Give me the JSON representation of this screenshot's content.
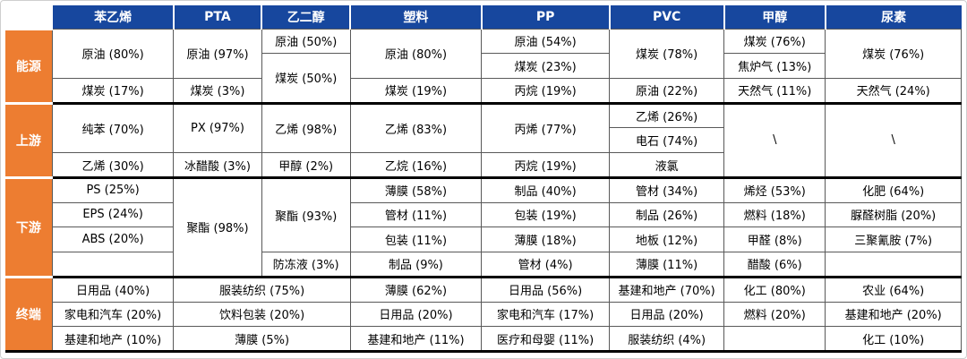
{
  "colors": {
    "header_bg": "#17479E",
    "header_text": "#FFFFFF",
    "label_bg": "#ED7D31",
    "label_text": "#FFFFFF",
    "body_text": "#000000",
    "thin_border": "#595959",
    "thick_border": "#000000"
  },
  "chart_data": {
    "type": "table",
    "corner_label": "",
    "col_widths_pct": [
      4.9,
      12.7,
      9.2,
      9.3,
      13.7,
      13.4,
      12.0,
      10.6,
      14.2
    ],
    "columns": [
      {
        "key": "styrene",
        "label": "苯乙烯"
      },
      {
        "key": "pta",
        "label": "PTA"
      },
      {
        "key": "meg",
        "label": "乙二醇"
      },
      {
        "key": "plastics",
        "label": "塑料"
      },
      {
        "key": "pp",
        "label": "PP"
      },
      {
        "key": "pvc",
        "label": "PVC"
      },
      {
        "key": "methanol",
        "label": "甲醇"
      },
      {
        "key": "urea",
        "label": "尿素"
      }
    ],
    "sections": [
      {
        "key": "energy",
        "label": "能源",
        "rows": 3,
        "columns": [
          {
            "cells": [
              {
                "t": "原油 (80%)",
                "rs": 2
              },
              {
                "t": "煤炭 (17%)"
              }
            ]
          },
          {
            "cells": [
              {
                "t": "原油 (97%)",
                "rs": 2
              },
              {
                "t": "煤炭 (3%)"
              }
            ]
          },
          {
            "cells": [
              {
                "t": "原油 (50%)"
              },
              {
                "t": "煤炭 (50%)",
                "rs": 2
              }
            ]
          },
          {
            "cells": [
              {
                "t": "原油 (80%)",
                "rs": 2
              },
              {
                "t": "煤炭 (19%)"
              }
            ]
          },
          {
            "cells": [
              {
                "t": "原油 (54%)"
              },
              {
                "t": "煤炭 (23%)"
              },
              {
                "t": "丙烷 (19%)"
              }
            ]
          },
          {
            "cells": [
              {
                "t": "煤炭 (78%)",
                "rs": 2
              },
              {
                "t": "原油 (22%)"
              }
            ]
          },
          {
            "cells": [
              {
                "t": "煤炭 (76%)"
              },
              {
                "t": "焦炉气 (13%)"
              },
              {
                "t": "天然气 (11%)"
              }
            ]
          },
          {
            "cells": [
              {
                "t": "煤炭 (76%)",
                "rs": 2
              },
              {
                "t": "天然气 (24%)"
              }
            ]
          }
        ]
      },
      {
        "key": "upstream",
        "label": "上游",
        "rows": 3,
        "columns": [
          {
            "cells": [
              {
                "t": "纯苯 (70%)",
                "rs": 2
              },
              {
                "t": "乙烯 (30%)"
              }
            ]
          },
          {
            "cells": [
              {
                "t": "PX (97%)",
                "rs": 2
              },
              {
                "t": "冰醋酸 (3%)"
              }
            ]
          },
          {
            "cells": [
              {
                "t": "乙烯 (98%)",
                "rs": 2
              },
              {
                "t": "甲醇 (2%)"
              }
            ]
          },
          {
            "cells": [
              {
                "t": "乙烯 (83%)",
                "rs": 2
              },
              {
                "t": "乙烷 (16%)"
              }
            ]
          },
          {
            "cells": [
              {
                "t": "丙烯 (77%)",
                "rs": 2
              },
              {
                "t": "丙烷 (19%)"
              }
            ]
          },
          {
            "cells": [
              {
                "t": "乙烯 (26%)"
              },
              {
                "t": "电石 (74%)"
              },
              {
                "t": "液氯"
              }
            ]
          },
          {
            "cells": [
              {
                "t": "\\",
                "rs": 3
              }
            ]
          },
          {
            "cells": [
              {
                "t": "\\",
                "rs": 3
              }
            ]
          }
        ]
      },
      {
        "key": "downstream",
        "label": "下游",
        "rows": 4,
        "columns": [
          {
            "cells": [
              {
                "t": "PS (25%)"
              },
              {
                "t": "EPS (24%)"
              },
              {
                "t": "ABS (20%)"
              },
              {
                "t": ""
              }
            ]
          },
          {
            "cells": [
              {
                "t": "聚酯 (98%)",
                "rs": 4
              }
            ]
          },
          {
            "cells": [
              {
                "t": "聚酯 (93%)",
                "rs": 3
              },
              {
                "t": "防冻液 (3%)"
              }
            ]
          },
          {
            "cells": [
              {
                "t": "薄膜 (58%)"
              },
              {
                "t": "管材 (11%)"
              },
              {
                "t": "包装 (11%)"
              },
              {
                "t": "制品 (9%)"
              }
            ]
          },
          {
            "cells": [
              {
                "t": "制品 (40%)"
              },
              {
                "t": "包装 (19%)"
              },
              {
                "t": "薄膜 (18%)"
              },
              {
                "t": "管材 (4%)"
              }
            ]
          },
          {
            "cells": [
              {
                "t": "管材 (34%)"
              },
              {
                "t": "制品 (26%)"
              },
              {
                "t": "地板 (12%)"
              },
              {
                "t": "薄膜 (11%)"
              }
            ]
          },
          {
            "cells": [
              {
                "t": "烯烃 (53%)"
              },
              {
                "t": "燃料 (18%)"
              },
              {
                "t": "甲醛 (8%)"
              },
              {
                "t": "醋酸 (6%)"
              }
            ]
          },
          {
            "cells": [
              {
                "t": "化肥 (64%)"
              },
              {
                "t": "脲醛树脂 (20%)"
              },
              {
                "t": "三聚氰胺 (7%)"
              },
              {
                "t": ""
              }
            ]
          }
        ]
      },
      {
        "key": "terminal",
        "label": "终端",
        "rows": 3,
        "columns": [
          {
            "cells": [
              {
                "t": "日用品 (40%)"
              },
              {
                "t": "家电和汽车 (20%)"
              },
              {
                "t": "基建和地产 (10%)"
              }
            ]
          },
          {
            "cs": 2,
            "cells": [
              {
                "t": "服装纺织 (75%)"
              },
              {
                "t": "饮料包装 (20%)"
              },
              {
                "t": "薄膜 (5%)"
              }
            ]
          },
          {
            "cells": [
              {
                "t": "薄膜 (62%)"
              },
              {
                "t": "日用品 (20%)"
              },
              {
                "t": "基建和地产 (11%)"
              }
            ]
          },
          {
            "cells": [
              {
                "t": "日用品 (56%)"
              },
              {
                "t": "家电和汽车 (17%)"
              },
              {
                "t": "医疗和母婴 (11%)"
              }
            ]
          },
          {
            "cells": [
              {
                "t": "基建和地产 (70%)"
              },
              {
                "t": "日用品 (20%)"
              },
              {
                "t": "服装纺织 (4%)"
              }
            ]
          },
          {
            "cells": [
              {
                "t": "化工 (80%)"
              },
              {
                "t": "燃料 (20%)"
              },
              {
                "t": ""
              }
            ]
          },
          {
            "cells": [
              {
                "t": "农业 (64%)"
              },
              {
                "t": "基建和地产 (20%)"
              },
              {
                "t": "化工 (10%)"
              }
            ]
          }
        ]
      }
    ]
  }
}
